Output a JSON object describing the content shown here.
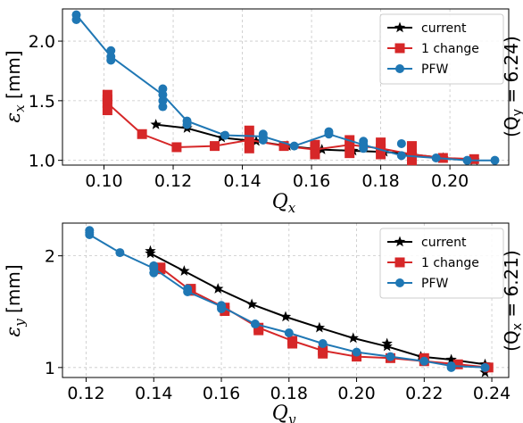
{
  "chart_data": [
    {
      "type": "line",
      "xlabel": "Q",
      "xlabel_sub": "x",
      "ylabel": "ε",
      "ylabel_sub": "x",
      "ylabel_unit": "[mm]",
      "side_note": "(Q",
      "side_note_sub": "y",
      "side_note_val": " = 6.24)",
      "xlim": [
        0.088,
        0.217
      ],
      "ylim": [
        0.96,
        2.27
      ],
      "xticks": [
        0.1,
        0.12,
        0.14,
        0.16,
        0.18,
        0.2
      ],
      "xtick_labels": [
        "0.10",
        "0.12",
        "0.14",
        "0.16",
        "0.18",
        "0.20"
      ],
      "yticks": [
        1.0,
        1.5,
        2.0
      ],
      "ytick_labels": [
        "1.0",
        "1.5",
        "2.0"
      ],
      "legend_position": "top-right",
      "grid": true,
      "series": [
        {
          "name": "current",
          "color": "#000000",
          "marker": "star",
          "x": [
            0.115,
            0.124,
            0.134,
            0.144,
            0.153,
            0.163,
            0.172,
            0.181,
            0.189,
            0.198,
            0.207
          ],
          "y": [
            1.3,
            1.27,
            1.19,
            1.16,
            1.12,
            1.09,
            1.08,
            1.07,
            1.05,
            1.02,
            1.0
          ]
        },
        {
          "name": "1 change",
          "color": "#d62728",
          "marker": "square",
          "x": [
            0.101,
            0.111,
            0.121,
            0.132,
            0.142,
            0.152,
            0.161,
            0.171,
            0.18,
            0.189,
            0.198,
            0.207
          ],
          "y": [
            1.48,
            1.22,
            1.11,
            1.12,
            1.17,
            1.12,
            1.09,
            1.13,
            1.1,
            1.05,
            1.02,
            1.01
          ],
          "extra_x": [
            0.101,
            0.101,
            0.101,
            0.142,
            0.142,
            0.161,
            0.161,
            0.171,
            0.171,
            0.18,
            0.18,
            0.189,
            0.189
          ],
          "extra_y": [
            1.55,
            1.42,
            1.51,
            1.25,
            1.1,
            1.05,
            1.13,
            1.17,
            1.06,
            1.15,
            1.05,
            1.12,
            1.0
          ]
        },
        {
          "name": "PFW",
          "color": "#1f77b4",
          "marker": "circle",
          "x": [
            0.092,
            0.102,
            0.117,
            0.124,
            0.135,
            0.146,
            0.155,
            0.165,
            0.175,
            0.186,
            0.196,
            0.205,
            0.213
          ],
          "y": [
            2.22,
            1.87,
            1.55,
            1.33,
            1.21,
            1.2,
            1.12,
            1.22,
            1.13,
            1.04,
            1.02,
            1.0,
            1.0
          ],
          "extra_x": [
            0.092,
            0.102,
            0.102,
            0.117,
            0.117,
            0.117,
            0.124,
            0.146,
            0.146,
            0.165,
            0.175,
            0.175,
            0.186
          ],
          "extra_y": [
            2.18,
            1.92,
            1.84,
            1.6,
            1.5,
            1.45,
            1.3,
            1.17,
            1.22,
            1.24,
            1.1,
            1.16,
            1.14
          ]
        }
      ]
    },
    {
      "type": "line",
      "xlabel": "Q",
      "xlabel_sub": "y",
      "ylabel": "ε",
      "ylabel_sub": "y",
      "ylabel_unit": "[mm]",
      "side_note": "(Q",
      "side_note_sub": "x",
      "side_note_val": " = 6.21)",
      "xlim": [
        0.113,
        0.245
      ],
      "ylim": [
        0.94,
        2.45
      ],
      "log_y": true,
      "xticks": [
        0.12,
        0.14,
        0.16,
        0.18,
        0.2,
        0.22,
        0.24
      ],
      "xtick_labels": [
        "0.12",
        "0.14",
        "0.16",
        "0.18",
        "0.20",
        "0.22",
        "0.24"
      ],
      "yticks": [
        1,
        2
      ],
      "ytick_labels": [
        "1",
        "2"
      ],
      "legend_position": "top-right",
      "grid": true,
      "series": [
        {
          "name": "current",
          "color": "#000000",
          "marker": "star",
          "x": [
            0.139,
            0.149,
            0.159,
            0.169,
            0.179,
            0.189,
            0.199,
            0.209,
            0.219,
            0.228,
            0.238
          ],
          "y": [
            2.03,
            1.82,
            1.63,
            1.48,
            1.37,
            1.28,
            1.2,
            1.14,
            1.07,
            1.05,
            1.02
          ],
          "extra_x": [
            0.139,
            0.209,
            0.238
          ],
          "extra_y": [
            2.06,
            1.16,
            0.97
          ]
        },
        {
          "name": "1 change",
          "color": "#d62728",
          "marker": "square",
          "x": [
            0.142,
            0.151,
            0.161,
            0.171,
            0.181,
            0.19,
            0.2,
            0.21,
            0.22,
            0.23,
            0.239
          ],
          "y": [
            1.86,
            1.61,
            1.45,
            1.28,
            1.18,
            1.11,
            1.07,
            1.06,
            1.04,
            1.02,
            1.0
          ],
          "extra_x": [
            0.142,
            0.151,
            0.161,
            0.171,
            0.181,
            0.19,
            0.22
          ],
          "extra_y": [
            1.84,
            1.63,
            1.42,
            1.26,
            1.16,
            1.09,
            1.06
          ]
        },
        {
          "name": "PFW",
          "color": "#1f77b4",
          "marker": "circle",
          "x": [
            0.121,
            0.13,
            0.14,
            0.15,
            0.16,
            0.17,
            0.18,
            0.19,
            0.2,
            0.21,
            0.22,
            0.228,
            0.238
          ],
          "y": [
            2.28,
            2.04,
            1.85,
            1.6,
            1.46,
            1.31,
            1.24,
            1.16,
            1.1,
            1.07,
            1.04,
            1.01,
            1.0
          ],
          "extra_x": [
            0.121,
            0.121,
            0.14,
            0.14,
            0.15,
            0.16,
            0.16,
            0.228
          ],
          "extra_y": [
            2.34,
            2.31,
            1.8,
            1.88,
            1.63,
            1.47,
            1.44,
            1.0
          ]
        }
      ]
    }
  ]
}
